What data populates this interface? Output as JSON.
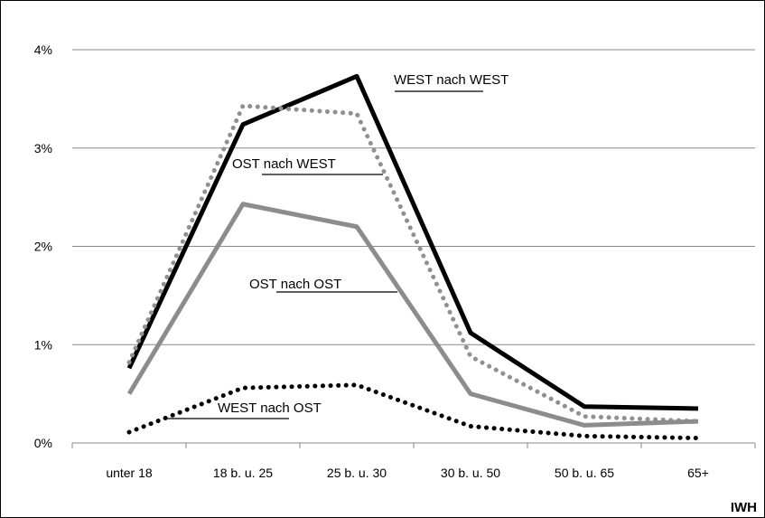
{
  "chart_data": {
    "type": "line",
    "categories": [
      "unter 18",
      "18 b. u. 25",
      "25 b. u. 30",
      "30 b. u. 50",
      "50 b. u. 65",
      "65+"
    ],
    "y_ticks": [
      "0%",
      "1%",
      "2%",
      "3%",
      "4%"
    ],
    "ylim": [
      0,
      4
    ],
    "grid": true,
    "source": "IWH",
    "series": [
      {
        "name": "WEST nach WEST",
        "values": [
          0.76,
          3.24,
          3.73,
          1.12,
          0.37,
          0.35
        ],
        "color": "#000000",
        "style": "solid"
      },
      {
        "name": "OST nach WEST",
        "values": [
          0.82,
          3.43,
          3.35,
          0.88,
          0.27,
          0.22
        ],
        "color": "#909090",
        "style": "dotted"
      },
      {
        "name": "OST nach OST",
        "values": [
          0.5,
          2.43,
          2.2,
          0.5,
          0.18,
          0.22
        ],
        "color": "#8c8c8c",
        "style": "solid"
      },
      {
        "name": "WEST nach OST",
        "values": [
          0.11,
          0.56,
          0.59,
          0.17,
          0.07,
          0.05
        ],
        "color": "#000000",
        "style": "dotted"
      }
    ]
  }
}
